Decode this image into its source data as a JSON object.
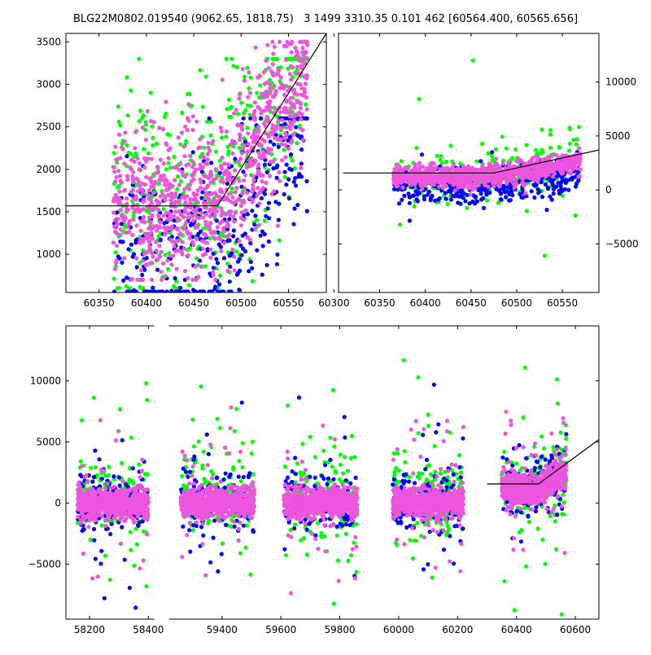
{
  "figure": {
    "title": "BLG22M0802.019540 (9062.65, 1818.75)   3 1499 3310.35 0.101 462 [60564.400, 60565.656]"
  },
  "colors": {
    "green": "#00ff00",
    "blue": "#0000ff",
    "magenta": "#ee55dd",
    "line": "#000000"
  },
  "chart_data": [
    {
      "type": "scatter",
      "xlim": [
        60315,
        60590
      ],
      "ylim": [
        550,
        3600
      ],
      "x_ticks": [
        60350,
        60400,
        60450,
        60500,
        60550
      ],
      "y_ticks": [
        1000,
        1500,
        2000,
        2500,
        3000,
        3500
      ],
      "y_axis_side": "left",
      "model_line": {
        "x": [
          60315,
          60475,
          60590
        ],
        "y": [
          1570,
          1570,
          3600
        ]
      },
      "series_ranges": [
        {
          "color": "magenta",
          "x": [
            60365,
            60570
          ],
          "y": [
            700,
            3500
          ],
          "count": 900
        },
        {
          "color": "green",
          "x": [
            60365,
            60570
          ],
          "y": [
            600,
            3300
          ],
          "count": 420
        },
        {
          "color": "blue",
          "x": [
            60365,
            60570
          ],
          "y": [
            560,
            2600
          ],
          "count": 380
        }
      ]
    },
    {
      "type": "scatter",
      "xlim": [
        60305,
        60590
      ],
      "ylim": [
        -9500,
        14500
      ],
      "x_ticks": [
        60300,
        60350,
        60400,
        60450,
        60500,
        60550
      ],
      "y_ticks": [
        -5000,
        0,
        5000,
        10000
      ],
      "y_axis_side": "right",
      "model_line": {
        "x": [
          60310,
          60475,
          60590
        ],
        "y": [
          1570,
          1570,
          3700
        ]
      },
      "series_ranges": [
        {
          "color": "magenta",
          "x": [
            60365,
            60570
          ],
          "y": [
            -2500,
            4500
          ],
          "count": 900
        },
        {
          "color": "green",
          "x": [
            60365,
            60570
          ],
          "y": [
            -7000,
            12000
          ],
          "count": 250
        },
        {
          "color": "blue",
          "x": [
            60365,
            60570
          ],
          "y": [
            -6000,
            3500
          ],
          "count": 400
        }
      ]
    },
    {
      "type": "scatter",
      "xlim": [
        58120,
        60680
      ],
      "ylim": [
        -9500,
        14500
      ],
      "x_ticks": [
        58200,
        58400,
        59400,
        59600,
        59800,
        60000,
        60200,
        60400,
        60600
      ],
      "y_ticks": [
        -5000,
        0,
        5000,
        10000
      ],
      "y_axis_side": "left",
      "x_gap": [
        58420,
        59220
      ],
      "x_gap_compressed_to": [
        58420,
        58470
      ],
      "model_line": {
        "x": [
          60300,
          60475,
          60680
        ],
        "y": [
          1570,
          1570,
          5200
        ]
      },
      "seasons": [
        {
          "x": [
            58160,
            58400
          ]
        },
        {
          "x": [
            59260,
            59510
          ]
        },
        {
          "x": [
            59610,
            59860
          ]
        },
        {
          "x": [
            59980,
            60220
          ]
        },
        {
          "x": [
            60350,
            60570
          ]
        }
      ]
    }
  ]
}
